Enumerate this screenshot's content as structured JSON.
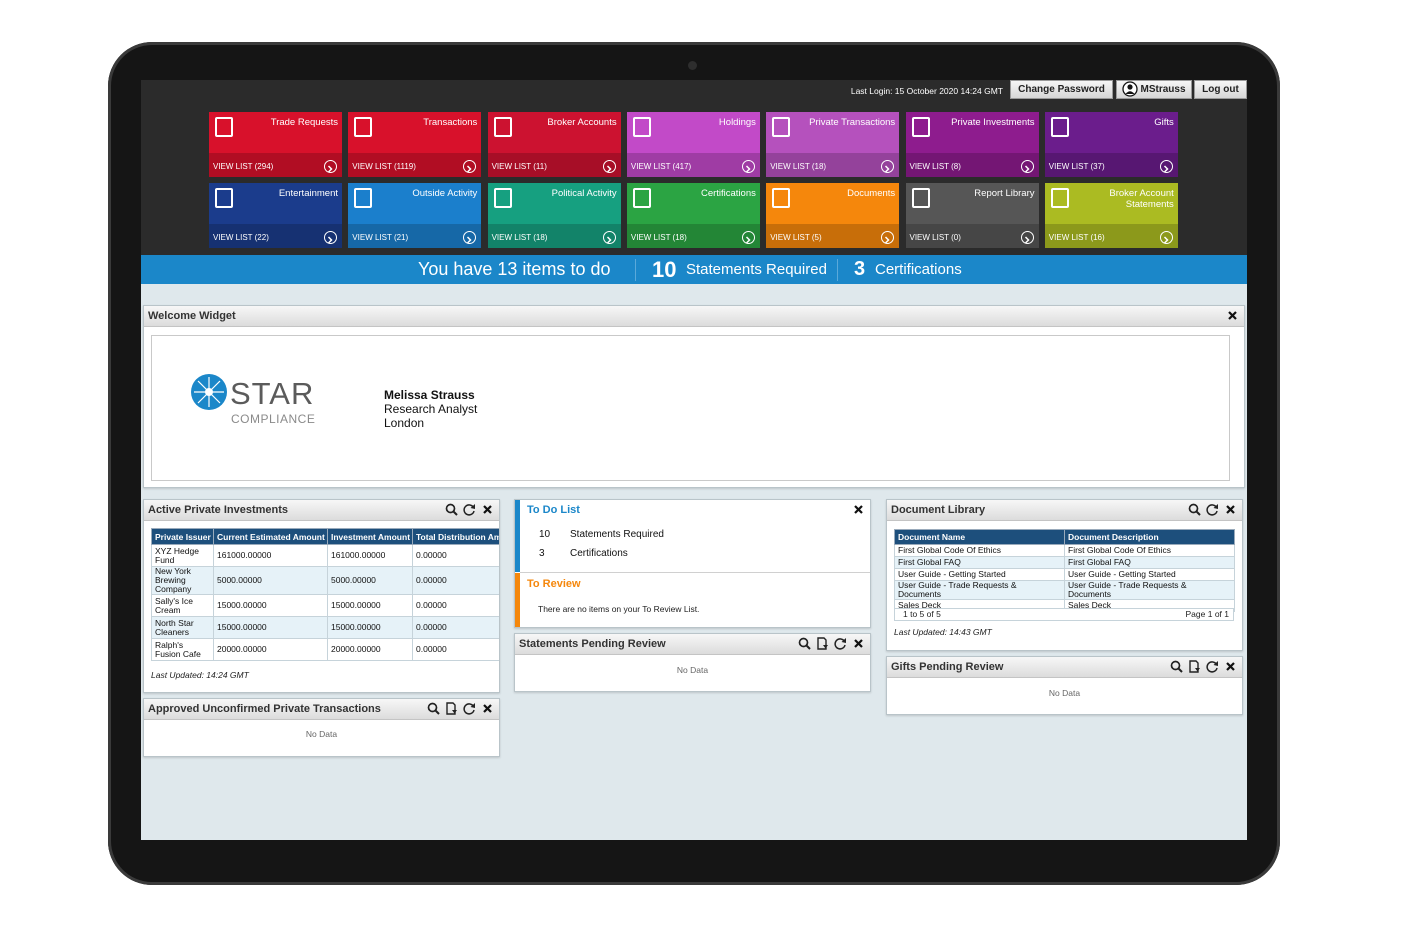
{
  "header": {
    "last_login": "Last Login: 15 October 2020 14:24 GMT",
    "change_password": "Change Password",
    "user": "MStrauss",
    "logout": "Log out"
  },
  "tiles": [
    {
      "title": "Trade Requests",
      "link": "VIEW LIST (294)",
      "color": "#d8112b"
    },
    {
      "title": "Transactions",
      "link": "VIEW LIST (1119)",
      "color": "#d8112b"
    },
    {
      "title": "Broker Accounts",
      "link": "VIEW LIST (11)",
      "color": "#cc1230"
    },
    {
      "title": "Holdings",
      "link": "VIEW LIST (417)",
      "color": "#c24ac8"
    },
    {
      "title": "Private Transactions",
      "link": "VIEW LIST (18)",
      "color": "#b551bd"
    },
    {
      "title": "Private Investments",
      "link": "VIEW LIST (8)",
      "color": "#8e1c8e"
    },
    {
      "title": "Gifts",
      "link": "VIEW LIST (37)",
      "color": "#6b1d8c"
    },
    {
      "title": "Entertainment",
      "link": "VIEW LIST (22)",
      "color": "#1b3c8c"
    },
    {
      "title": "Outside Activity",
      "link": "VIEW LIST (21)",
      "color": "#1b7fcc"
    },
    {
      "title": "Political Activity",
      "link": "VIEW LIST (18)",
      "color": "#16a080"
    },
    {
      "title": "Certifications",
      "link": "VIEW LIST (18)",
      "color": "#2ba443"
    },
    {
      "title": "Documents",
      "link": "VIEW LIST (5)",
      "color": "#f5870c"
    },
    {
      "title": "Report Library",
      "link": "VIEW LIST (0)",
      "color": "#565656"
    },
    {
      "title": "Broker Account Statements",
      "link": "VIEW LIST (16)",
      "color": "#abbb22"
    }
  ],
  "banner": {
    "todo": "You have 13 items to do",
    "statements_count": "10",
    "statements_label": "Statements Required",
    "certifications_count": "3",
    "certifications_label": "Certifications"
  },
  "welcome": {
    "title": "Welcome Widget",
    "logo_star": "STAR",
    "logo_compliance": "COMPLIANCE",
    "name": "Melissa Strauss",
    "role": "Research Analyst",
    "location": "London"
  },
  "private_investments": {
    "title": "Active Private Investments",
    "columns": [
      "Private Issuer",
      "Current Estimated Amount",
      "Investment Amount",
      "Total Distribution Am"
    ],
    "rows": [
      [
        "XYZ Hedge Fund",
        "161000.00000",
        "161000.00000",
        "0.00000"
      ],
      [
        "New York Brewing Company",
        "5000.00000",
        "5000.00000",
        "0.00000"
      ],
      [
        "Sally's Ice Cream",
        "15000.00000",
        "15000.00000",
        "0.00000"
      ],
      [
        "North Star Cleaners",
        "15000.00000",
        "15000.00000",
        "0.00000"
      ],
      [
        "Ralph's Fusion Cafe",
        "20000.00000",
        "20000.00000",
        "0.00000"
      ]
    ],
    "updated": "Last Updated: 14:24 GMT"
  },
  "approved_transactions": {
    "title": "Approved Unconfirmed Private Transactions",
    "empty": "No Data"
  },
  "todo": {
    "title": "To Do List",
    "items": [
      [
        "10",
        "Statements Required"
      ],
      [
        "3",
        "Certifications"
      ]
    ],
    "review_title": "To Review",
    "review_empty": "There are no items on your To Review List."
  },
  "statements_pending": {
    "title": "Statements Pending Review",
    "empty": "No Data"
  },
  "document_library": {
    "title": "Document Library",
    "columns": [
      "Document Name",
      "Document Description"
    ],
    "rows": [
      [
        "First Global Code Of Ethics",
        "First Global Code Of Ethics"
      ],
      [
        "First Global FAQ",
        "First Global FAQ"
      ],
      [
        "User Guide - Getting Started",
        "User Guide - Getting Started"
      ],
      [
        "User Guide - Trade Requests & Documents",
        "User Guide - Trade Requests & Documents"
      ],
      [
        "Sales Deck",
        "Sales Deck"
      ]
    ],
    "range": "1 to 5 of 5",
    "page": "Page 1 of 1",
    "updated": "Last Updated: 14:43 GMT"
  },
  "gifts_pending": {
    "title": "Gifts Pending Review",
    "empty": "No Data"
  }
}
